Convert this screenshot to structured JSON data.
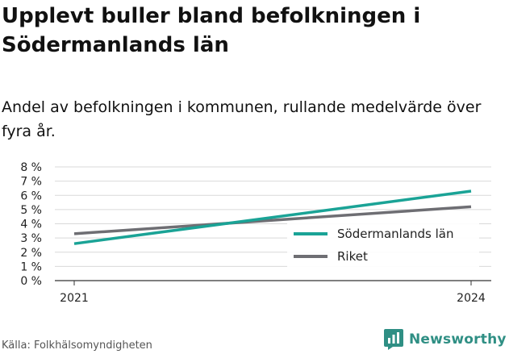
{
  "title": "Upplevt buller bland befolkningen i Södermanlands län",
  "subtitle": "Andel av befolkningen i kommunen, rullande medelvärde över fyra år.",
  "source": "Källa: Folkhälsomyndigheten",
  "brand": {
    "name": "Newsworthy",
    "icon": "newsworthy-logo-icon",
    "color": "#2f8f84"
  },
  "chart_data": {
    "type": "line",
    "x": [
      "2021",
      "2024"
    ],
    "series": [
      {
        "name": "Södermanlands län",
        "color": "#1aa396",
        "values": [
          2.6,
          6.3
        ]
      },
      {
        "name": "Riket",
        "color": "#6e6e73",
        "values": [
          3.3,
          5.2
        ]
      }
    ],
    "ylim": [
      0,
      8
    ],
    "yticks": [
      0,
      1,
      2,
      3,
      4,
      5,
      6,
      7,
      8
    ],
    "ytick_labels": [
      "0 %",
      "1 %",
      "2 %",
      "3 %",
      "4 %",
      "5 %",
      "6 %",
      "7 %",
      "8 %"
    ],
    "xticks": [
      "2021",
      "2024"
    ],
    "grid": true,
    "legend_position": "bottom-right",
    "xlabel": "",
    "ylabel": ""
  }
}
